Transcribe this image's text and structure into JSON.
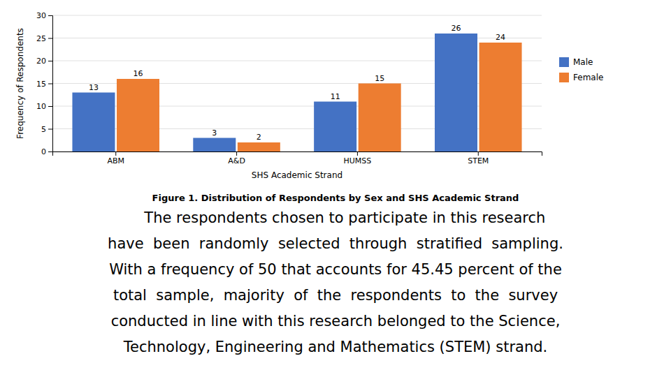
{
  "chart_data": {
    "type": "bar",
    "title": "Figure 1. Distribution of Respondents by Sex and SHS Academic Strand",
    "annotations": [
      "    The respondents chosen to participate in this research",
      "have  been  randomly  selected  through  stratified  sampling.",
      "With a frequency of 50 that accounts for 45.45 percent of the",
      "total  sample,  majority  of  the  respondents  to  the  survey",
      "conducted in line with this research belonged to the Science,",
      "Technology, Engineering and Mathematics (STEM) strand."
    ],
    "xlabel": "SHS Academic Strand",
    "ylabel": "Frequency of Respondents",
    "categories": [
      "ABM",
      "A&D",
      "HUMSS",
      "STEM"
    ],
    "series": [
      {
        "name": "Male",
        "color": "#4472C4",
        "values": [
          13,
          3,
          11,
          26
        ]
      },
      {
        "name": "Female",
        "color": "#ED7D31",
        "values": [
          16,
          2,
          15,
          24
        ]
      }
    ],
    "ylim": [
      0,
      30
    ],
    "yticks": [
      0,
      5,
      10,
      15,
      20,
      25,
      30
    ],
    "grid": true,
    "legend": "right",
    "data_labels": true
  }
}
